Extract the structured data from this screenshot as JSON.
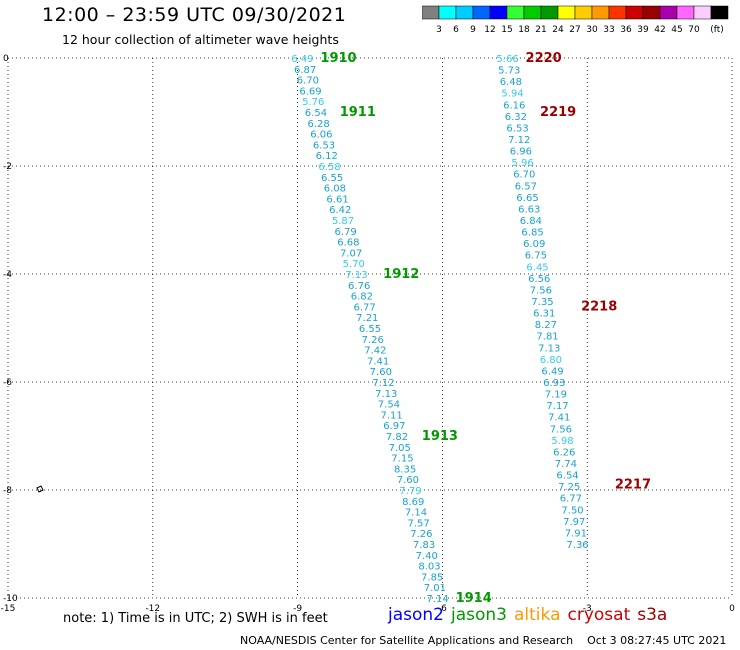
{
  "header": {
    "title": "12:00  –  23:59 UTC 09/30/2021",
    "subtitle": "12 hour collection of altimeter wave heights"
  },
  "color_scale": {
    "colors": [
      "#808080",
      "#00ffff",
      "#00ccff",
      "#0066ff",
      "#0000ff",
      "#33ff33",
      "#00cc00",
      "#009900",
      "#ffff00",
      "#ffcc00",
      "#ff9900",
      "#ff3300",
      "#cc0000",
      "#990000",
      "#aa00aa",
      "#ff66ff",
      "#ffccff",
      "#000000"
    ],
    "labels": [
      "3",
      "6",
      "9",
      "12",
      "15",
      "18",
      "21",
      "24",
      "27",
      "30",
      "33",
      "36",
      "39",
      "42",
      "45",
      "70"
    ],
    "unit": "(ft)"
  },
  "footer": {
    "note": "note:  1) Time is in UTC; 2) SWH is in feet",
    "legend": [
      {
        "label": "jason2",
        "color": "#0000ff"
      },
      {
        "label": "jason3",
        "color": "#009900"
      },
      {
        "label": "altika",
        "color": "#ff9900"
      },
      {
        "label": "cryosat",
        "color": "#cc0000"
      },
      {
        "label": "s3a",
        "color": "#990000"
      }
    ],
    "credit": "NOAA/NESDIS Center for Satellite Applications and Research",
    "timestamp": "Oct  3 08:27:45 UTC 2021"
  },
  "map": {
    "x_ticks": [
      "-15",
      "-12",
      "-9",
      "-6",
      "-3",
      "0"
    ],
    "y_ticks": [
      "0",
      "-2",
      "-4",
      "-6",
      "-8",
      "-10"
    ],
    "xlim": [
      -15,
      0
    ],
    "ylim": [
      -10,
      0
    ]
  },
  "chart_data": {
    "type": "scatter",
    "xlim": [
      -15,
      0
    ],
    "ylim": [
      -10,
      0
    ],
    "grid": true,
    "tracks": [
      {
        "start": [
          -8.9,
          0.0
        ],
        "end": [
          -6.1,
          -10.0
        ],
        "color": "#1aa3cc",
        "values": [
          "6.49",
          "6.87",
          "6.70",
          "6.69",
          "5.76",
          "6.54",
          "6.28",
          "6.06",
          "6.53",
          "6.12",
          "6.58",
          "6.55",
          "6.08",
          "6.61",
          "6.42",
          "5.87",
          "6.79",
          "6.68",
          "7.07",
          "5.70",
          "7.13",
          "6.76",
          "6.82",
          "6.77",
          "7.21",
          "6.55",
          "7.26",
          "7.42",
          "7.41",
          "7.60",
          "7.12",
          "7.13",
          "7.54",
          "7.11",
          "6.97",
          "7.82",
          "7.05",
          "7.15",
          "8.35",
          "7.60",
          "7.79",
          "8.69",
          "7.14",
          "7.57",
          "7.26",
          "7.83",
          "7.40",
          "8.03",
          "7.85",
          "7.01",
          "7.14"
        ],
        "light_values": [
          "6.49",
          "5.76",
          "6.58",
          "5.87",
          "5.70",
          "7.13",
          "7.79"
        ],
        "times": [
          {
            "label": "1910",
            "at": [
              -8.9,
              0.0
            ],
            "color": "#009900"
          },
          {
            "label": "1911",
            "at": [
              -8.5,
              -1.0
            ],
            "color": "#009900"
          },
          {
            "label": "1912",
            "at": [
              -7.6,
              -4.0
            ],
            "color": "#009900"
          },
          {
            "label": "1913",
            "at": [
              -6.8,
              -7.0
            ],
            "color": "#009900"
          },
          {
            "label": "1914",
            "at": [
              -6.1,
              -10.0
            ],
            "color": "#009900"
          }
        ]
      },
      {
        "start": [
          -4.65,
          0.0
        ],
        "end": [
          -3.2,
          -9.0
        ],
        "color": "#1aa3cc",
        "values": [
          "5.66",
          "5.73",
          "6.48",
          "5.94",
          "6.16",
          "6.32",
          "6.53",
          "7.12",
          "6.96",
          "5.96",
          "6.70",
          "6.57",
          "6.65",
          "6.63",
          "6.84",
          "6.85",
          "6.09",
          "6.75",
          "6.45",
          "6.56",
          "7.56",
          "7.35",
          "6.31",
          "8.27",
          "7.81",
          "7.13",
          "6.80",
          "6.49",
          "6.93",
          "7.19",
          "7.17",
          "7.41",
          "7.56",
          "5.98",
          "6.26",
          "7.74",
          "6.54",
          "7.25",
          "6.77",
          "7.50",
          "7.97",
          "7.91",
          "7.36"
        ],
        "light_values": [
          "5.66",
          "5.94",
          "5.96",
          "6.45",
          "5.98",
          "6.80"
        ],
        "times": [
          {
            "label": "2220",
            "at": [
              -4.65,
              0.0
            ],
            "color": "#990000"
          },
          {
            "label": "2219",
            "at": [
              -4.35,
              -1.0
            ],
            "color": "#990000"
          },
          {
            "label": "2218",
            "at": [
              -3.5,
              -4.6
            ],
            "color": "#990000"
          },
          {
            "label": "2217",
            "at": [
              -2.8,
              -7.9
            ],
            "color": "#990000"
          }
        ]
      }
    ]
  }
}
